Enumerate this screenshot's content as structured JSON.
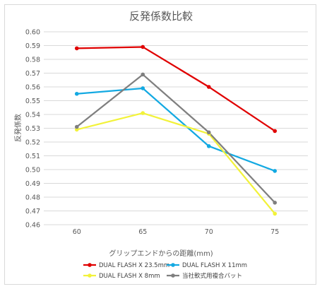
{
  "chart_data": {
    "type": "line",
    "title": "反発係数比較",
    "xlabel": "グリップエンドからの距離(mm)",
    "ylabel": "反発係数",
    "categories": [
      "60",
      "65",
      "70",
      "75"
    ],
    "ylim": [
      0.46,
      0.6
    ],
    "ytick_step": 0.01,
    "y_ticks": [
      "0.60",
      "0.59",
      "0.58",
      "0.57",
      "0.56",
      "0.55",
      "0.54",
      "0.53",
      "0.52",
      "0.51",
      "0.50",
      "0.49",
      "0.48",
      "0.47",
      "0.46"
    ],
    "grid": true,
    "legend_position": "bottom",
    "series": [
      {
        "name": "DUAL FLASH X 23.5mm",
        "color": "#e00000",
        "values": [
          0.588,
          0.589,
          0.56,
          0.528
        ]
      },
      {
        "name": "DUAL FLASH X 11mm",
        "color": "#13a9e2",
        "values": [
          0.555,
          0.559,
          0.517,
          0.499
        ]
      },
      {
        "name": "DUAL FLASH X 8mm",
        "color": "#f2f23a",
        "values": [
          0.529,
          0.541,
          0.526,
          0.468
        ]
      },
      {
        "name": "当社軟式用複合バット",
        "color": "#7f7f7f",
        "values": [
          0.531,
          0.569,
          0.527,
          0.476
        ]
      }
    ]
  }
}
